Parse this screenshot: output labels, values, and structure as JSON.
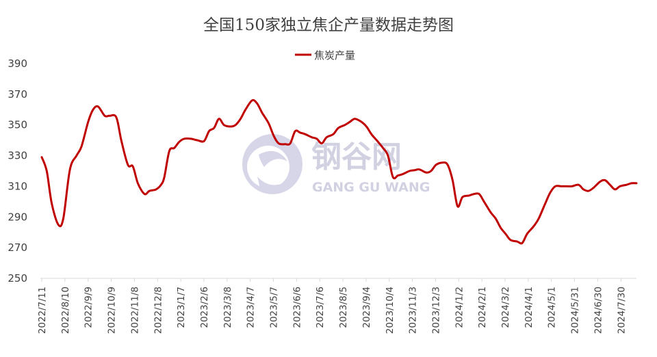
{
  "chart_data": {
    "type": "line",
    "title": "全国150家独立焦企产量数据走势图",
    "xlabel": "",
    "ylabel": "",
    "ylim": [
      250,
      390
    ],
    "yticks": [
      250,
      270,
      290,
      310,
      330,
      350,
      370,
      390
    ],
    "xticks": [
      "2022/7/11",
      "2022/8/10",
      "2022/9/9",
      "2022/10/9",
      "2022/11/8",
      "2022/12/8",
      "2023/1/7",
      "2023/2/6",
      "2023/3/8",
      "2023/4/7",
      "2023/5/7",
      "2023/6/6",
      "2023/7/6",
      "2023/8/5",
      "2023/9/4",
      "2023/10/4",
      "2023/11/3",
      "2023/12/3",
      "2024/1/2",
      "2024/2/1",
      "2024/3/2",
      "2024/4/1",
      "2024/5/1",
      "2024/5/31",
      "2024/6/30",
      "2024/7/30"
    ],
    "grid": false,
    "legend": "top-center",
    "series": [
      {
        "name": "焦炭产量",
        "color": "#c00000",
        "points": [
          [
            0,
            329
          ],
          [
            3,
            320
          ],
          [
            6,
            299
          ],
          [
            10,
            285
          ],
          [
            13,
            289
          ],
          [
            17,
            321
          ],
          [
            21,
            330
          ],
          [
            24,
            336
          ],
          [
            28,
            352
          ],
          [
            31,
            360
          ],
          [
            34,
            362
          ],
          [
            38,
            356
          ],
          [
            41,
            356
          ],
          [
            45,
            355
          ],
          [
            48,
            340
          ],
          [
            52,
            324
          ],
          [
            55,
            323
          ],
          [
            58,
            312
          ],
          [
            62,
            305
          ],
          [
            65,
            307
          ],
          [
            69,
            308
          ],
          [
            72,
            311
          ],
          [
            74,
            316
          ],
          [
            77,
            333
          ],
          [
            80,
            335
          ],
          [
            83,
            339
          ],
          [
            86,
            341
          ],
          [
            90,
            341
          ],
          [
            94,
            340
          ],
          [
            98,
            339.5
          ],
          [
            101,
            346
          ],
          [
            104,
            348
          ],
          [
            107,
            354
          ],
          [
            110,
            350
          ],
          [
            114,
            349
          ],
          [
            117,
            350
          ],
          [
            120,
            354
          ],
          [
            123,
            360
          ],
          [
            127,
            366
          ],
          [
            130,
            364
          ],
          [
            133,
            358
          ],
          [
            137,
            351
          ],
          [
            140,
            343
          ],
          [
            143,
            338
          ],
          [
            147,
            337.5
          ],
          [
            150,
            338
          ],
          [
            153,
            346
          ],
          [
            156,
            345
          ],
          [
            159,
            344
          ],
          [
            163,
            342
          ],
          [
            166,
            341
          ],
          [
            169,
            338
          ],
          [
            172,
            342
          ],
          [
            176,
            344
          ],
          [
            179,
            348
          ],
          [
            183,
            350
          ],
          [
            186,
            352
          ],
          [
            189,
            354
          ],
          [
            193,
            352
          ],
          [
            196,
            349
          ],
          [
            199,
            344
          ],
          [
            203,
            339
          ],
          [
            206,
            335
          ],
          [
            209,
            330
          ],
          [
            212,
            316
          ],
          [
            215,
            317
          ],
          [
            218,
            318
          ],
          [
            222,
            320
          ],
          [
            225,
            320.5
          ],
          [
            228,
            321
          ],
          [
            232,
            319
          ],
          [
            235,
            320
          ],
          [
            238,
            324
          ],
          [
            242,
            325.5
          ],
          [
            245,
            324
          ],
          [
            248,
            314
          ],
          [
            251,
            297
          ],
          [
            254,
            303
          ],
          [
            258,
            304
          ],
          [
            261,
            305
          ],
          [
            264,
            305
          ],
          [
            267,
            300
          ],
          [
            271,
            293
          ],
          [
            274,
            289
          ],
          [
            277,
            283
          ],
          [
            280,
            279
          ],
          [
            283,
            275
          ],
          [
            287,
            274
          ],
          [
            290,
            273
          ],
          [
            293,
            279
          ],
          [
            297,
            284
          ],
          [
            300,
            289
          ],
          [
            304,
            299
          ],
          [
            307,
            306
          ],
          [
            310,
            310
          ],
          [
            314,
            310
          ],
          [
            317,
            310
          ],
          [
            320,
            310
          ],
          [
            324,
            311
          ],
          [
            327,
            308
          ],
          [
            330,
            307
          ],
          [
            333,
            309
          ],
          [
            337,
            313
          ],
          [
            340,
            314
          ],
          [
            343,
            311
          ],
          [
            346,
            308
          ],
          [
            349,
            310
          ],
          [
            353,
            311
          ],
          [
            356,
            312
          ],
          [
            359,
            312
          ]
        ]
      }
    ]
  }
}
